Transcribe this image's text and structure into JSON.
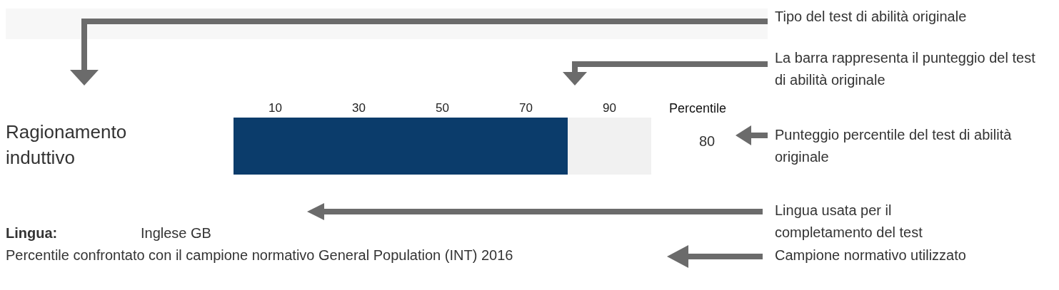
{
  "chart_data": {
    "type": "bar",
    "orientation": "horizontal",
    "xlabel": "Percentile",
    "categories": [
      "Ragionamento induttivo"
    ],
    "values": [
      80
    ],
    "color": "#0b3c6b",
    "xlim": [
      0,
      100
    ],
    "xticks": [
      10,
      30,
      50,
      70,
      90
    ],
    "annotations": [
      "Tipo del test di abilità originale",
      "La barra rappresenta il punteggio del test di abilità originale",
      "Punteggio percentile del test di abilità originale",
      "Lingua usata per il completamento del test",
      "Campione normativo utilizzato",
      "Lingua:",
      "Inglese GB",
      "Percentile confrontato con il campione normativo General Population (INT) 2016",
      "80"
    ]
  }
}
